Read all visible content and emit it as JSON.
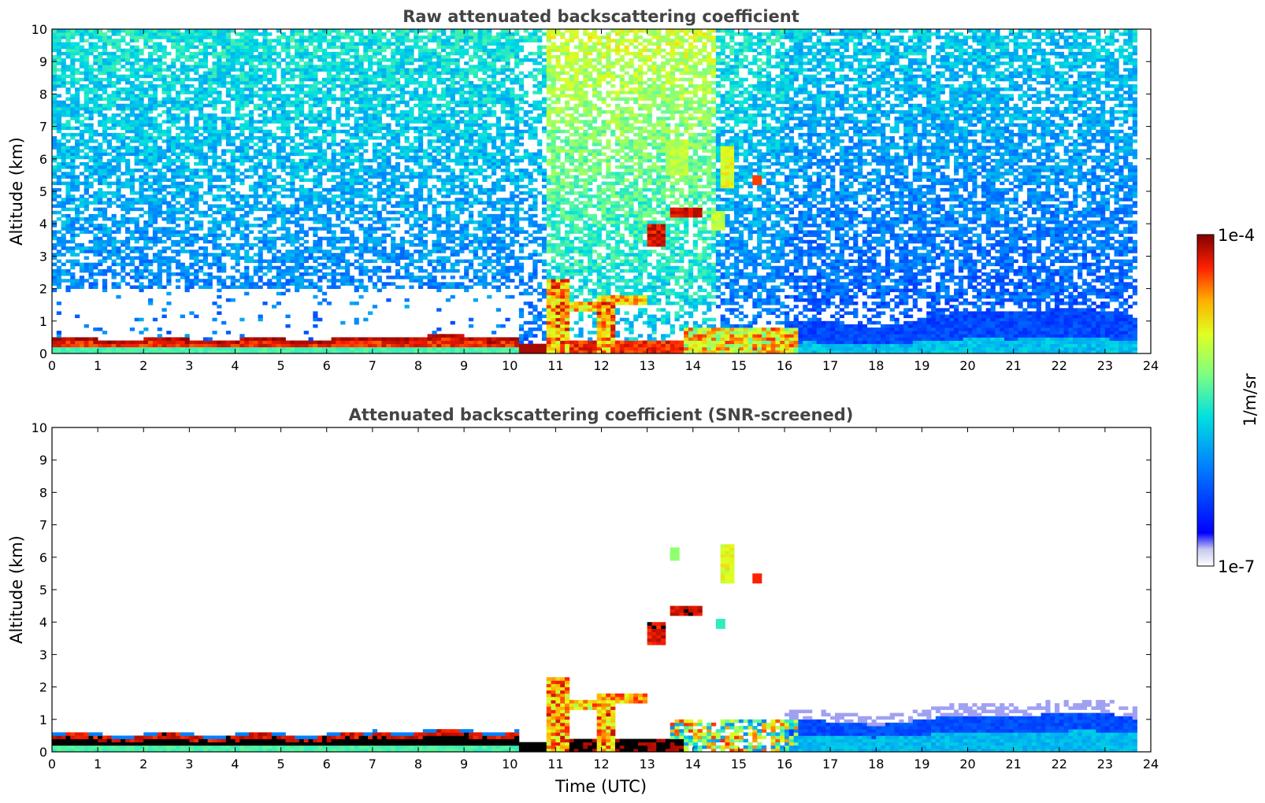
{
  "chart_data": [
    {
      "type": "heatmap",
      "title": "Raw attenuated backscattering coefficient",
      "xlabel": "",
      "ylabel": "Altitude (km)",
      "xlim": [
        0,
        24
      ],
      "ylim": [
        0,
        10
      ],
      "x_ticks": [
        0,
        1,
        2,
        3,
        4,
        5,
        6,
        7,
        8,
        9,
        10,
        11,
        12,
        13,
        14,
        15,
        16,
        17,
        18,
        19,
        20,
        21,
        22,
        23,
        24
      ],
      "y_ticks": [
        0,
        1,
        2,
        3,
        4,
        5,
        6,
        7,
        8,
        9,
        10
      ],
      "data_end_time": 23.7,
      "features": [
        {
          "name": "boundary layer top",
          "time": [
            0,
            10.2
          ],
          "altitude_km": [
            0.3,
            0.55
          ],
          "level": 0.95
        },
        {
          "name": "low cloud columns",
          "time": [
            10.8,
            11.3
          ],
          "altitude_km": [
            0,
            2.3
          ],
          "level": 0.8
        },
        {
          "name": "low cloud columns",
          "time": [
            11.9,
            12.3
          ],
          "altitude_km": [
            0,
            1.8
          ],
          "level": 0.8
        },
        {
          "name": "mid-level cloud",
          "time": [
            13.5,
            14.3
          ],
          "altitude_km": [
            4.1,
            4.6
          ],
          "level": 0.95
        },
        {
          "name": "mid-level cloud",
          "time": [
            13.4,
            14.0
          ],
          "altitude_km": [
            5.5,
            6.5
          ],
          "level": 0.6
        },
        {
          "name": "mid-level cloud",
          "time": [
            14.6,
            14.9
          ],
          "altitude_km": [
            5.2,
            6.4
          ],
          "level": 0.65
        },
        {
          "name": "afternoon boundary layer",
          "time": [
            16.0,
            23.7
          ],
          "altitude_km": [
            0,
            1.4
          ],
          "level": 0.35
        }
      ]
    },
    {
      "type": "heatmap",
      "title": "Attenuated backscattering coefficient (SNR-screened)",
      "xlabel": "Time (UTC)",
      "ylabel": "Altitude (km)",
      "xlim": [
        0,
        24
      ],
      "ylim": [
        0,
        10
      ],
      "x_ticks": [
        0,
        1,
        2,
        3,
        4,
        5,
        6,
        7,
        8,
        9,
        10,
        11,
        12,
        13,
        14,
        15,
        16,
        17,
        18,
        19,
        20,
        21,
        22,
        23,
        24
      ],
      "y_ticks": [
        0,
        1,
        2,
        3,
        4,
        5,
        6,
        7,
        8,
        9,
        10
      ],
      "data_end_time": 23.7,
      "features": [
        {
          "name": "boundary layer top",
          "time": [
            0,
            10.2
          ],
          "altitude_km": [
            0.3,
            0.6
          ],
          "level": 0.98
        },
        {
          "name": "low cloud columns",
          "time": [
            10.8,
            11.3
          ],
          "altitude_km": [
            0,
            2.3
          ],
          "level": 0.8
        },
        {
          "name": "low cloud columns",
          "time": [
            11.9,
            12.3
          ],
          "altitude_km": [
            0,
            1.8
          ],
          "level": 0.8
        },
        {
          "name": "mid-level cloud",
          "time": [
            13.5,
            14.3
          ],
          "altitude_km": [
            4.1,
            4.6
          ],
          "level": 0.95
        },
        {
          "name": "mid-level cloud",
          "time": [
            14.6,
            14.9
          ],
          "altitude_km": [
            5.2,
            6.4
          ],
          "level": 0.65
        },
        {
          "name": "afternoon boundary layer",
          "time": [
            16.0,
            23.7
          ],
          "altitude_km": [
            0,
            1.6
          ],
          "level": 0.35
        }
      ]
    }
  ],
  "colorbar": {
    "max_label": "1e-4",
    "min_label": "1e-7",
    "unit_label": "1/m/sr",
    "colormap": "jet"
  }
}
